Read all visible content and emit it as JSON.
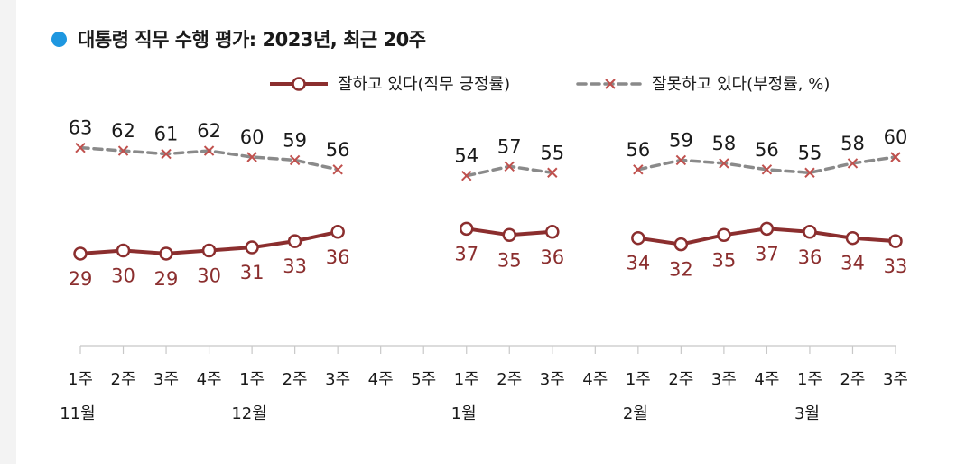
{
  "title": "대통령 직무 수행 평가: 2023년, 최근 20주",
  "colors": {
    "approve": "#8b2e2e",
    "disapprove": "#8a8a8a",
    "accent": "#1e97e0"
  },
  "chart_data": {
    "type": "line",
    "title": "대통령 직무 수행 평가: 2023년, 최근 20주",
    "x": [
      "1주",
      "2주",
      "3주",
      "4주",
      "1주",
      "2주",
      "3주",
      "4주",
      "5주",
      "1주",
      "2주",
      "3주",
      "4주",
      "1주",
      "2주",
      "3주",
      "4주",
      "1주",
      "2주",
      "3주"
    ],
    "months": [
      {
        "label": "11월",
        "index": 0
      },
      {
        "label": "12월",
        "index": 4
      },
      {
        "label": "1월",
        "index": 9
      },
      {
        "label": "2월",
        "index": 13
      },
      {
        "label": "3월",
        "index": 17
      }
    ],
    "series": [
      {
        "name": "잘하고 있다(직무 긍정률)",
        "style": "solid-circle",
        "values": [
          29,
          30,
          29,
          30,
          31,
          33,
          36,
          null,
          null,
          37,
          35,
          36,
          null,
          34,
          32,
          35,
          37,
          36,
          34,
          33
        ]
      },
      {
        "name": "잘못하고 있다(부정률, %)",
        "style": "dashed-x",
        "values": [
          63,
          62,
          61,
          62,
          60,
          59,
          56,
          null,
          null,
          54,
          57,
          55,
          null,
          56,
          59,
          58,
          56,
          55,
          58,
          60
        ]
      }
    ],
    "legend_position": "top-right"
  }
}
